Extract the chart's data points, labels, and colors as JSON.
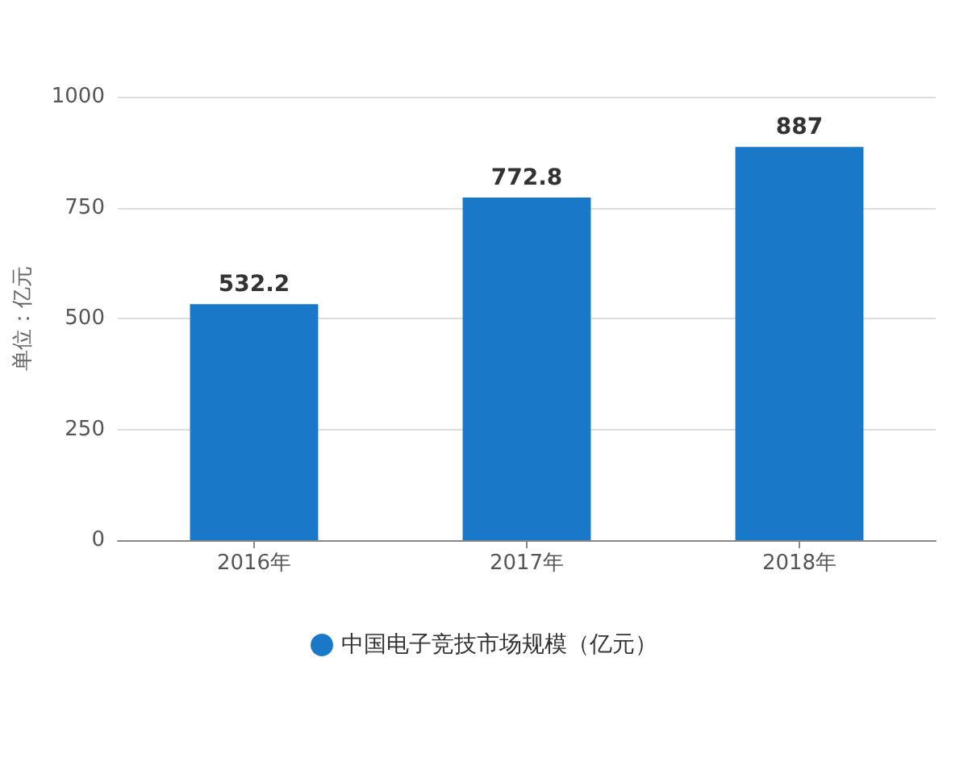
{
  "chart_data": {
    "type": "bar",
    "ylabel": "单位：亿元",
    "categories": [
      "2016年",
      "2017年",
      "2018年"
    ],
    "series": [
      {
        "name": "中国电子竞技市场规模（亿元）",
        "color": "#1a78c8",
        "values": [
          532.2,
          772.8,
          887
        ]
      }
    ],
    "ylim": [
      0,
      1000
    ],
    "yticks": [
      0,
      250,
      500,
      750,
      1000
    ],
    "grid": "y",
    "legend": "bottom",
    "data_labels": true
  }
}
